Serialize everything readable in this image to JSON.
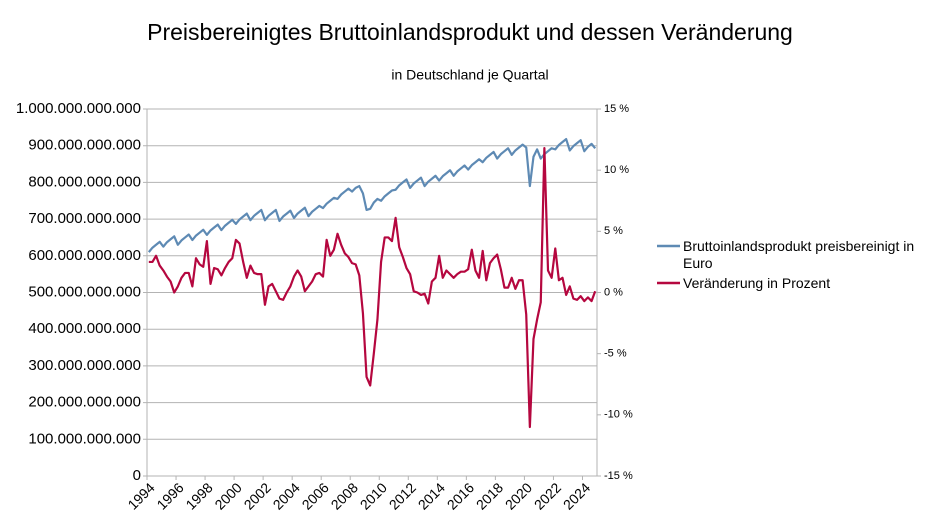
{
  "chart_data": {
    "type": "line",
    "title": "Preisbereinigtes Bruttoinlandsprodukt und dessen Veränderung",
    "subtitle": "in Deutschland je Quartal",
    "categories": [
      "1994",
      null,
      null,
      null,
      null,
      null,
      null,
      null,
      "1996",
      null,
      null,
      null,
      null,
      null,
      null,
      null,
      "1998",
      null,
      null,
      null,
      null,
      null,
      null,
      null,
      "2000",
      null,
      null,
      null,
      null,
      null,
      null,
      null,
      "2002",
      null,
      null,
      null,
      null,
      null,
      null,
      null,
      "2004",
      null,
      null,
      null,
      null,
      null,
      null,
      null,
      "2006",
      null,
      null,
      null,
      null,
      null,
      null,
      null,
      "2008",
      null,
      null,
      null,
      null,
      null,
      null,
      null,
      "2010",
      null,
      null,
      null,
      null,
      null,
      null,
      null,
      "2012",
      null,
      null,
      null,
      null,
      null,
      null,
      null,
      "2014",
      null,
      null,
      null,
      null,
      null,
      null,
      null,
      "2016",
      null,
      null,
      null,
      null,
      null,
      null,
      null,
      "2018",
      null,
      null,
      null,
      null,
      null,
      null,
      null,
      "2020",
      null,
      null,
      null,
      null,
      null,
      null,
      null,
      "2022",
      null,
      null,
      null,
      null,
      null,
      null,
      null,
      "2024",
      null,
      null,
      null
    ],
    "series": [
      {
        "name": "Bruttoinlandsprodukt preisbereinigt in Euro",
        "color": "#5e8ab4",
        "axis": "y",
        "values": [
          610000000000.0,
          622000000000.0,
          630000000000.0,
          638000000000.0,
          625000000000.0,
          637000000000.0,
          645000000000.0,
          653000000000.0,
          630000000000.0,
          642000000000.0,
          650000000000.0,
          658000000000.0,
          643000000000.0,
          655000000000.0,
          663000000000.0,
          671000000000.0,
          657000000000.0,
          669000000000.0,
          677000000000.0,
          685000000000.0,
          670000000000.0,
          682000000000.0,
          690000000000.0,
          698000000000.0,
          687000000000.0,
          699000000000.0,
          707000000000.0,
          715000000000.0,
          697000000000.0,
          709000000000.0,
          717000000000.0,
          725000000000.0,
          697000000000.0,
          709000000000.0,
          717000000000.0,
          725000000000.0,
          695000000000.0,
          707000000000.0,
          715000000000.0,
          723000000000.0,
          703000000000.0,
          715000000000.0,
          723000000000.0,
          731000000000.0,
          708000000000.0,
          720000000000.0,
          728000000000.0,
          736000000000.0,
          730000000000.0,
          742000000000.0,
          750000000000.0,
          758000000000.0,
          755000000000.0,
          767000000000.0,
          775000000000.0,
          783000000000.0,
          775000000000.0,
          785000000000.0,
          790000000000.0,
          770000000000.0,
          725000000000.0,
          728000000000.0,
          745000000000.0,
          755000000000.0,
          750000000000.0,
          762000000000.0,
          770000000000.0,
          778000000000.0,
          780000000000.0,
          792000000000.0,
          800000000000.0,
          808000000000.0,
          785000000000.0,
          797000000000.0,
          805000000000.0,
          813000000000.0,
          790000000000.0,
          802000000000.0,
          810000000000.0,
          818000000000.0,
          805000000000.0,
          817000000000.0,
          825000000000.0,
          833000000000.0,
          818000000000.0,
          830000000000.0,
          838000000000.0,
          846000000000.0,
          835000000000.0,
          847000000000.0,
          855000000000.0,
          863000000000.0,
          855000000000.0,
          867000000000.0,
          875000000000.0,
          883000000000.0,
          865000000000.0,
          877000000000.0,
          885000000000.0,
          893000000000.0,
          875000000000.0,
          887000000000.0,
          895000000000.0,
          903000000000.0,
          895000000000.0,
          790000000000.0,
          870000000000.0,
          890000000000.0,
          865000000000.0,
          877000000000.0,
          885000000000.0,
          893000000000.0,
          890000000000.0,
          902000000000.0,
          910000000000.0,
          918000000000.0,
          887000000000.0,
          899000000000.0,
          907000000000.0,
          915000000000.0,
          885000000000.0,
          897000000000.0,
          905000000000.0,
          893000000000.0
        ]
      },
      {
        "name": "Veränderung in Prozent",
        "color": "#b5073f",
        "axis": "y2",
        "values": [
          2.5,
          2.5,
          3.0,
          2.2,
          1.8,
          1.3,
          0.9,
          0.0,
          0.5,
          1.2,
          1.6,
          1.6,
          0.5,
          2.8,
          2.3,
          2.1,
          4.2,
          0.7,
          2.0,
          1.9,
          1.4,
          2.0,
          2.5,
          2.8,
          4.3,
          4.0,
          2.5,
          1.2,
          2.2,
          1.6,
          1.5,
          1.5,
          -1.0,
          0.5,
          0.7,
          0.1,
          -0.5,
          -0.6,
          0.0,
          0.5,
          1.3,
          1.8,
          1.3,
          0.1,
          0.5,
          0.9,
          1.5,
          1.6,
          1.3,
          4.3,
          3.0,
          3.5,
          4.8,
          3.9,
          3.2,
          2.9,
          2.4,
          2.3,
          1.4,
          -1.7,
          -6.9,
          -7.6,
          -5.0,
          -2.2,
          2.5,
          4.5,
          4.5,
          4.2,
          6.1,
          3.7,
          2.9,
          2.0,
          1.5,
          0.1,
          0.0,
          -0.2,
          -0.1,
          -0.9,
          0.9,
          1.2,
          3.0,
          1.2,
          1.8,
          1.5,
          1.2,
          1.5,
          1.7,
          1.7,
          1.9,
          3.5,
          1.8,
          1.2,
          3.4,
          1.0,
          2.4,
          2.8,
          3.1,
          1.9,
          0.4,
          0.4,
          1.2,
          0.3,
          1.0,
          1.0,
          -1.8,
          -11.0,
          -3.8,
          -2.2,
          -0.8,
          11.8,
          1.8,
          1.2,
          3.6,
          1.0,
          1.2,
          -0.2,
          0.5,
          -0.5,
          -0.6,
          -0.3,
          -0.7,
          -0.4,
          -0.7,
          0.1
        ]
      }
    ],
    "ylim": [
      0,
      1000000000000
    ],
    "yticks": [
      0,
      {
        "value": 100000000000,
        "label": "100.000.000.000"
      },
      {
        "value": 200000000000,
        "label": "200.000.000.000"
      },
      {
        "value": 300000000000,
        "label": "300.000.000.000"
      },
      {
        "value": 400000000000,
        "label": "400.000.000.000"
      },
      {
        "value": 500000000000,
        "label": "500.000.000.000"
      },
      {
        "value": 600000000000,
        "label": "600.000.000.000"
      },
      {
        "value": 700000000000,
        "label": "700.000.000.000"
      },
      {
        "value": 800000000000,
        "label": "800.000.000.000"
      },
      {
        "value": 900000000000,
        "label": "900.000.000.000"
      },
      {
        "value": 1000000000000,
        "label": "1.000.000.000.000"
      }
    ],
    "y2lim": [
      -15,
      15
    ],
    "y2ticks": [
      {
        "value": -15,
        "label": "-15 %"
      },
      {
        "value": -10,
        "label": "-10 %"
      },
      {
        "value": -5,
        "label": "-5 %"
      },
      {
        "value": 0,
        "label": "0 %"
      },
      {
        "value": 5,
        "label": "5 %"
      },
      {
        "value": 10,
        "label": "10 %"
      },
      {
        "value": 15,
        "label": "15 %"
      }
    ],
    "grid": true,
    "legend": "right"
  }
}
